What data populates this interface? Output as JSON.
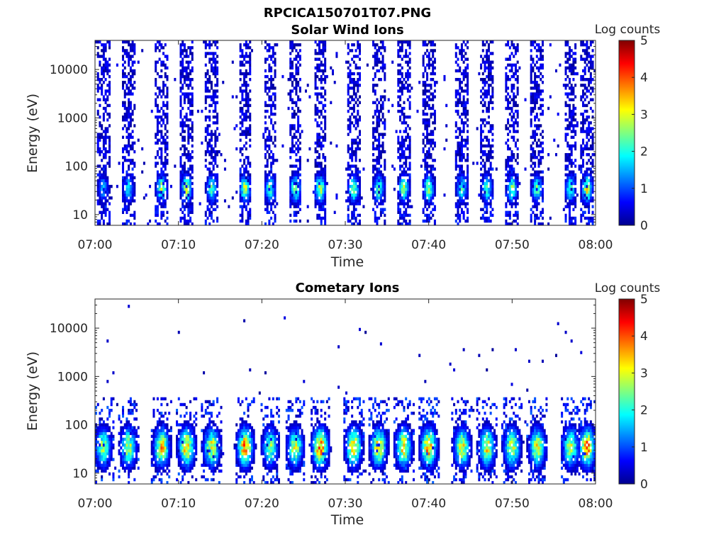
{
  "figure": {
    "title": "RPCICA150701T07.PNG"
  },
  "colorbar": {
    "label": "Log counts",
    "ticks": [
      "0",
      "1",
      "2",
      "3",
      "4",
      "5"
    ],
    "range": [
      0,
      5
    ],
    "colormap": "jet"
  },
  "chart_data": [
    {
      "type": "heatmap",
      "title": "Solar Wind Ions",
      "xlabel": "Time",
      "ylabel": "Energy (eV)",
      "x_ticks": [
        "07:00",
        "07:10",
        "07:20",
        "07:30",
        "07:40",
        "07:50",
        "08:00"
      ],
      "xlim": [
        "07:00",
        "08:00"
      ],
      "y_ticks": [
        "10",
        "100",
        "1000",
        "10000"
      ],
      "ylim": [
        6,
        40000
      ],
      "y_scale": "log",
      "colorbar_label": "Log counts",
      "clim": [
        0,
        5
      ],
      "peak_energy_band_eV": [
        20,
        60
      ],
      "sweep_times": [
        "07:01",
        "07:04",
        "07:08",
        "07:11",
        "07:14",
        "07:18",
        "07:21",
        "07:24",
        "07:27",
        "07:31",
        "07:34",
        "07:37",
        "07:40",
        "07:44",
        "07:47",
        "07:50",
        "07:53",
        "07:57",
        "07:59"
      ],
      "peak_log_counts": [
        1.6,
        1.8,
        2.6,
        2.8,
        2.2,
        2.8,
        2.2,
        2.6,
        2.8,
        2.6,
        2.4,
        2.6,
        2.6,
        2.2,
        2.2,
        2.4,
        2.4,
        2.2,
        3.0
      ]
    },
    {
      "type": "heatmap",
      "title": "Cometary Ions",
      "xlabel": "Time",
      "ylabel": "Energy (eV)",
      "x_ticks": [
        "07:00",
        "07:10",
        "07:20",
        "07:30",
        "07:40",
        "07:50",
        "08:00"
      ],
      "xlim": [
        "07:00",
        "08:00"
      ],
      "y_ticks": [
        "10",
        "100",
        "1000",
        "10000"
      ],
      "ylim": [
        6,
        40000
      ],
      "y_scale": "log",
      "colorbar_label": "Log counts",
      "clim": [
        0,
        5
      ],
      "peak_energy_band_eV": [
        20,
        60
      ],
      "sweep_times": [
        "07:01",
        "07:04",
        "07:08",
        "07:11",
        "07:14",
        "07:18",
        "07:21",
        "07:24",
        "07:27",
        "07:31",
        "07:34",
        "07:37",
        "07:40",
        "07:44",
        "07:47",
        "07:50",
        "07:53",
        "07:57",
        "07:59"
      ],
      "peak_log_counts": [
        2.8,
        3.0,
        3.4,
        3.6,
        3.2,
        3.8,
        2.6,
        3.0,
        4.0,
        3.6,
        3.4,
        3.4,
        3.8,
        3.2,
        3.2,
        3.2,
        3.2,
        3.0,
        3.8
      ]
    }
  ]
}
